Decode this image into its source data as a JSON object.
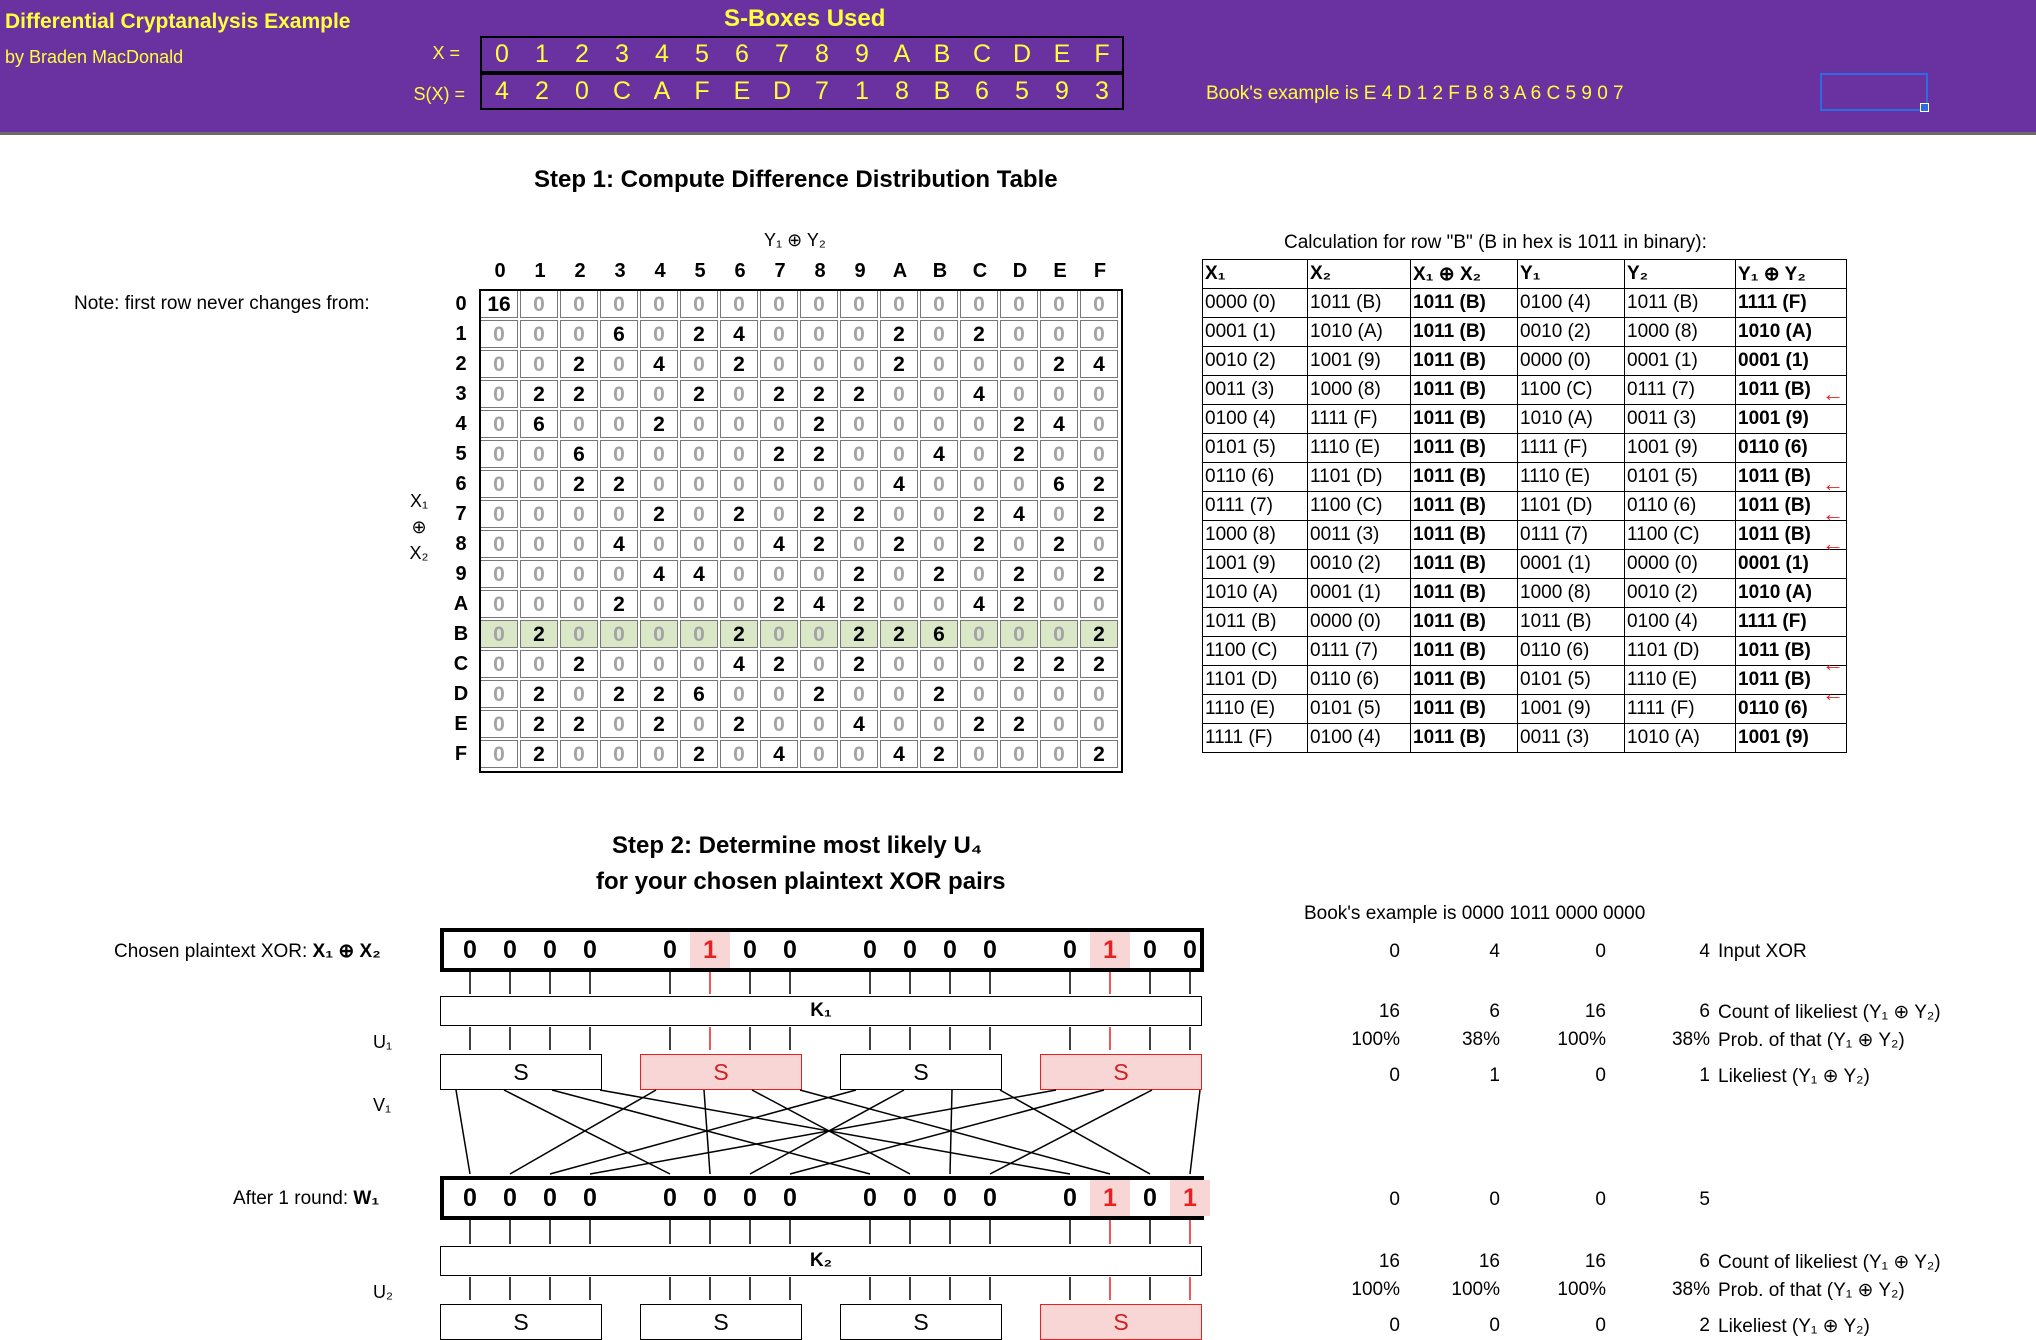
{
  "header": {
    "title": "Differential Cryptanalysis Example",
    "author": "by Braden MacDonald",
    "sboxes_title": "S-Boxes Used",
    "x_label": "X =",
    "sx_label": "S(X) =",
    "x_values": [
      "0",
      "1",
      "2",
      "3",
      "4",
      "5",
      "6",
      "7",
      "8",
      "9",
      "A",
      "B",
      "C",
      "D",
      "E",
      "F"
    ],
    "sx_values": [
      "4",
      "2",
      "0",
      "C",
      "A",
      "F",
      "E",
      "D",
      "7",
      "1",
      "8",
      "B",
      "6",
      "5",
      "9",
      "3"
    ],
    "book_example": "Book's example is E 4 D 1 2 F B 8 3 A 6 C 5 9 0 7",
    "colors": {
      "band": "#6a32a0",
      "text": "#ffff3c"
    }
  },
  "step1": {
    "title": "Step 1: Compute Difference Distribution Table",
    "y_axis_label": "Y₁ ⊕ Y₂",
    "x_axis_label": [
      "X₁",
      "⊕",
      "X₂"
    ],
    "note": "Note: first row never changes from:",
    "hex": [
      "0",
      "1",
      "2",
      "3",
      "4",
      "5",
      "6",
      "7",
      "8",
      "9",
      "A",
      "B",
      "C",
      "D",
      "E",
      "F"
    ],
    "highlight_row": 11,
    "table": [
      [
        16,
        0,
        0,
        0,
        0,
        0,
        0,
        0,
        0,
        0,
        0,
        0,
        0,
        0,
        0,
        0
      ],
      [
        0,
        0,
        0,
        6,
        0,
        2,
        4,
        0,
        0,
        0,
        2,
        0,
        2,
        0,
        0,
        0
      ],
      [
        0,
        0,
        2,
        0,
        4,
        0,
        2,
        0,
        0,
        0,
        2,
        0,
        0,
        0,
        2,
        4
      ],
      [
        0,
        2,
        2,
        0,
        0,
        2,
        0,
        2,
        2,
        2,
        0,
        0,
        4,
        0,
        0,
        0
      ],
      [
        0,
        6,
        0,
        0,
        2,
        0,
        0,
        0,
        2,
        0,
        0,
        0,
        0,
        2,
        4,
        0
      ],
      [
        0,
        0,
        6,
        0,
        0,
        0,
        0,
        2,
        2,
        0,
        0,
        4,
        0,
        2,
        0,
        0
      ],
      [
        0,
        0,
        2,
        2,
        0,
        0,
        0,
        0,
        0,
        0,
        4,
        0,
        0,
        0,
        6,
        2
      ],
      [
        0,
        0,
        0,
        0,
        2,
        0,
        2,
        0,
        2,
        2,
        0,
        0,
        2,
        4,
        0,
        2
      ],
      [
        0,
        0,
        0,
        4,
        0,
        0,
        0,
        4,
        2,
        0,
        2,
        0,
        2,
        0,
        2,
        0
      ],
      [
        0,
        0,
        0,
        0,
        4,
        4,
        0,
        0,
        0,
        2,
        0,
        2,
        0,
        2,
        0,
        2
      ],
      [
        0,
        0,
        0,
        2,
        0,
        0,
        0,
        2,
        4,
        2,
        0,
        0,
        4,
        2,
        0,
        0
      ],
      [
        0,
        2,
        0,
        0,
        0,
        0,
        2,
        0,
        0,
        2,
        2,
        6,
        0,
        0,
        0,
        2
      ],
      [
        0,
        0,
        2,
        0,
        0,
        0,
        4,
        2,
        0,
        2,
        0,
        0,
        0,
        2,
        2,
        2
      ],
      [
        0,
        2,
        0,
        2,
        2,
        6,
        0,
        0,
        2,
        0,
        0,
        2,
        0,
        0,
        0,
        0
      ],
      [
        0,
        2,
        2,
        0,
        2,
        0,
        2,
        0,
        0,
        4,
        0,
        0,
        2,
        2,
        0,
        0
      ],
      [
        0,
        2,
        0,
        0,
        0,
        2,
        0,
        4,
        0,
        0,
        4,
        2,
        0,
        0,
        0,
        2
      ]
    ]
  },
  "calc": {
    "title": "Calculation for row \"B\" (B in hex is 1011 in binary):",
    "headers": [
      "X₁",
      "X₂",
      "X₁ ⊕ X₂",
      "Y₁",
      "Y₂",
      "Y₁ ⊕ Y₂"
    ],
    "rows": [
      [
        "0000 (0)",
        "1011 (B)",
        "1011 (B)",
        "0100 (4)",
        "1011 (B)",
        "1111 (F)"
      ],
      [
        "0001 (1)",
        "1010 (A)",
        "1011 (B)",
        "0010 (2)",
        "1000 (8)",
        "1010 (A)"
      ],
      [
        "0010 (2)",
        "1001 (9)",
        "1011 (B)",
        "0000 (0)",
        "0001 (1)",
        "0001 (1)"
      ],
      [
        "0011 (3)",
        "1000 (8)",
        "1011 (B)",
        "1100 (C)",
        "0111 (7)",
        "1011 (B)"
      ],
      [
        "0100 (4)",
        "1111 (F)",
        "1011 (B)",
        "1010 (A)",
        "0011 (3)",
        "1001 (9)"
      ],
      [
        "0101 (5)",
        "1110 (E)",
        "1011 (B)",
        "1111 (F)",
        "1001 (9)",
        "0110 (6)"
      ],
      [
        "0110 (6)",
        "1101 (D)",
        "1011 (B)",
        "1110 (E)",
        "0101 (5)",
        "1011 (B)"
      ],
      [
        "0111 (7)",
        "1100 (C)",
        "1011 (B)",
        "1101 (D)",
        "0110 (6)",
        "1011 (B)"
      ],
      [
        "1000 (8)",
        "0011 (3)",
        "1011 (B)",
        "0111 (7)",
        "1100 (C)",
        "1011 (B)"
      ],
      [
        "1001 (9)",
        "0010 (2)",
        "1011 (B)",
        "0001 (1)",
        "0000 (0)",
        "0001 (1)"
      ],
      [
        "1010 (A)",
        "0001 (1)",
        "1011 (B)",
        "1000 (8)",
        "0010 (2)",
        "1010 (A)"
      ],
      [
        "1011 (B)",
        "0000 (0)",
        "1011 (B)",
        "1011 (B)",
        "0100 (4)",
        "1111 (F)"
      ],
      [
        "1100 (C)",
        "0111 (7)",
        "1011 (B)",
        "0110 (6)",
        "1101 (D)",
        "1011 (B)"
      ],
      [
        "1101 (D)",
        "0110 (6)",
        "1011 (B)",
        "0101 (5)",
        "1110 (E)",
        "1011 (B)"
      ],
      [
        "1110 (E)",
        "0101 (5)",
        "1011 (B)",
        "1001 (9)",
        "1111 (F)",
        "0110 (6)"
      ],
      [
        "1111 (F)",
        "0100 (4)",
        "1011 (B)",
        "0011 (3)",
        "1010 (A)",
        "1001 (9)"
      ]
    ],
    "arrow_rows": [
      3,
      6,
      7,
      8,
      12,
      13
    ],
    "arrow_glyph": "←"
  },
  "step2": {
    "title_line1": "Step 2: Determine most likely U₄",
    "title_line2": "for your chosen plaintext XOR pairs",
    "book_example": "Book's example is 0000 1011 0000 0000",
    "chosen_label": "Chosen plaintext XOR:",
    "chosen_label_bold": "X₁ ⊕ X₂",
    "u1_label": "U₁",
    "v1_label": "V₁",
    "after_round_label": "After 1 round:",
    "after_round_bold": "W₁",
    "u2_label": "U₂",
    "k1_label": "K₁",
    "k2_label": "K₂",
    "s_label": "S",
    "chosen_bits": [
      "0",
      "0",
      "0",
      "0",
      "0",
      "1",
      "0",
      "0",
      "0",
      "0",
      "0",
      "0",
      "0",
      "1",
      "0",
      "0"
    ],
    "w1_bits": [
      "0",
      "0",
      "0",
      "0",
      "0",
      "0",
      "0",
      "0",
      "0",
      "0",
      "0",
      "0",
      "0",
      "1",
      "0",
      "1"
    ],
    "round1": {
      "input_xor": [
        "0",
        "4",
        "0",
        "4"
      ],
      "input_label": "Input XOR",
      "counts": [
        "16",
        "6",
        "16",
        "6"
      ],
      "count_label": "Count of likeliest (Y₁ ⊕ Y₂)",
      "probs": [
        "100%",
        "38%",
        "100%",
        "38%"
      ],
      "prob_label": "Prob. of that (Y₁ ⊕ Y₂)",
      "likeliest": [
        "0",
        "1",
        "0",
        "1"
      ],
      "likeliest_label": "Likeliest (Y₁ ⊕ Y₂)"
    },
    "w1_values": [
      "0",
      "0",
      "0",
      "5"
    ],
    "round2": {
      "counts": [
        "16",
        "16",
        "16",
        "6"
      ],
      "count_label": "Count of likeliest (Y₁ ⊕ Y₂)",
      "probs": [
        "100%",
        "100%",
        "100%",
        "38%"
      ],
      "prob_label": "Prob. of that (Y₁ ⊕ Y₂)",
      "likeliest": [
        "0",
        "0",
        "0",
        "2"
      ],
      "likeliest_label": "Likeliest (Y₁ ⊕ Y₂)"
    }
  }
}
